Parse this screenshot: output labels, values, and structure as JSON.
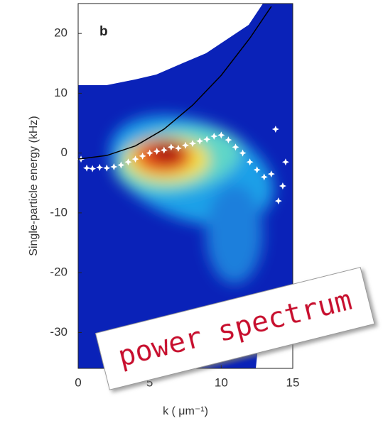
{
  "chart_data": {
    "type": "scatter",
    "panel_label": "b",
    "y_label": "Single-particle energy (kHz)",
    "x_label": "k ( μm⁻¹)",
    "annotation": "power spectrum",
    "xlim": [
      0,
      15
    ],
    "xticks": [
      0,
      5,
      10,
      15
    ],
    "ylim": [
      -36,
      25
    ],
    "yticks": [
      -30,
      -20,
      -10,
      0,
      10,
      20
    ],
    "series": [
      {
        "color": "#ffffff",
        "x": [
          0.2,
          0.6,
          1.0,
          1.5,
          2.0,
          2.5,
          3.0,
          3.5,
          4.0,
          4.5,
          5.0,
          5.5,
          6.0,
          6.5,
          7.0,
          7.5,
          8.0,
          8.5,
          9.0,
          9.5,
          10.0,
          10.5,
          11.0,
          11.5,
          12.0,
          12.5,
          13.0,
          13.5,
          14.3,
          13.8,
          14.0,
          14.5
        ],
        "values": [
          -1.0,
          -2.5,
          -2.6,
          -2.4,
          -2.5,
          -2.3,
          -2.0,
          -1.5,
          -1.0,
          -0.5,
          0.0,
          0.3,
          0.5,
          1.0,
          0.8,
          1.3,
          1.6,
          2.0,
          2.3,
          2.8,
          3.0,
          2.2,
          1.0,
          0.0,
          -1.5,
          -2.8,
          -4.0,
          -3.5,
          -5.5,
          4.0,
          -8.0,
          -1.5
        ]
      },
      {
        "type": "line",
        "color": "#000000",
        "x": [
          0,
          2,
          4,
          6,
          8,
          10,
          12,
          13.5
        ],
        "values": [
          -1.0,
          -0.4,
          1.2,
          4.0,
          8.0,
          13.0,
          19.2,
          24.5
        ]
      }
    ]
  }
}
